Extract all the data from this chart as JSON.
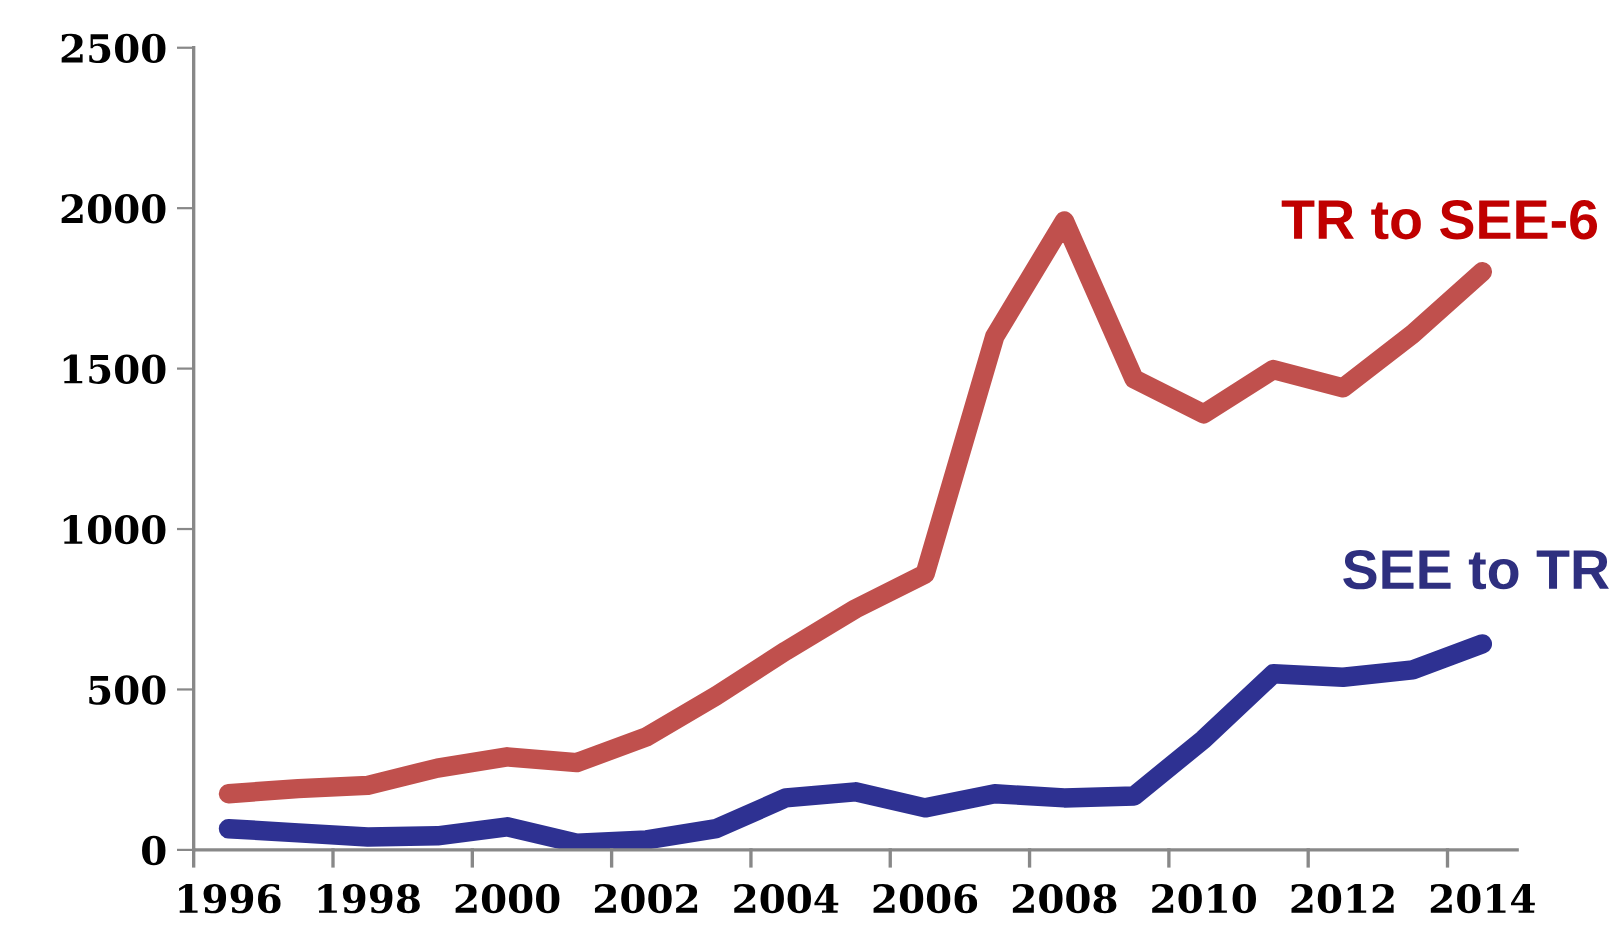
{
  "chart_data": {
    "type": "line",
    "categories": [
      "1996",
      null,
      "1998",
      null,
      "2000",
      null,
      "2002",
      null,
      "2004",
      null,
      "2006",
      null,
      "2008",
      null,
      "2010",
      null,
      "2012",
      null,
      "2014"
    ],
    "series": [
      {
        "name": "TR to SEE-6",
        "color": "#c0504d",
        "values": [
          175,
          191,
          201,
          255,
          290,
          272,
          352,
          480,
          620,
          751,
          860,
          1600,
          1960,
          1468,
          1359,
          1497,
          1440,
          1608,
          1802
        ]
      },
      {
        "name": "SEE to TR",
        "color": "#2e3192",
        "values": [
          66,
          53,
          40,
          44,
          72,
          21,
          31,
          66,
          162,
          181,
          131,
          175,
          162,
          168,
          345,
          549,
          538,
          561,
          642
        ]
      }
    ],
    "ylim": [
      0,
      2500
    ],
    "yticks": [
      0,
      500,
      1000,
      1500,
      2000,
      2500
    ],
    "grid": false,
    "legend": false,
    "marker": "none",
    "line_style": "solid"
  }
}
